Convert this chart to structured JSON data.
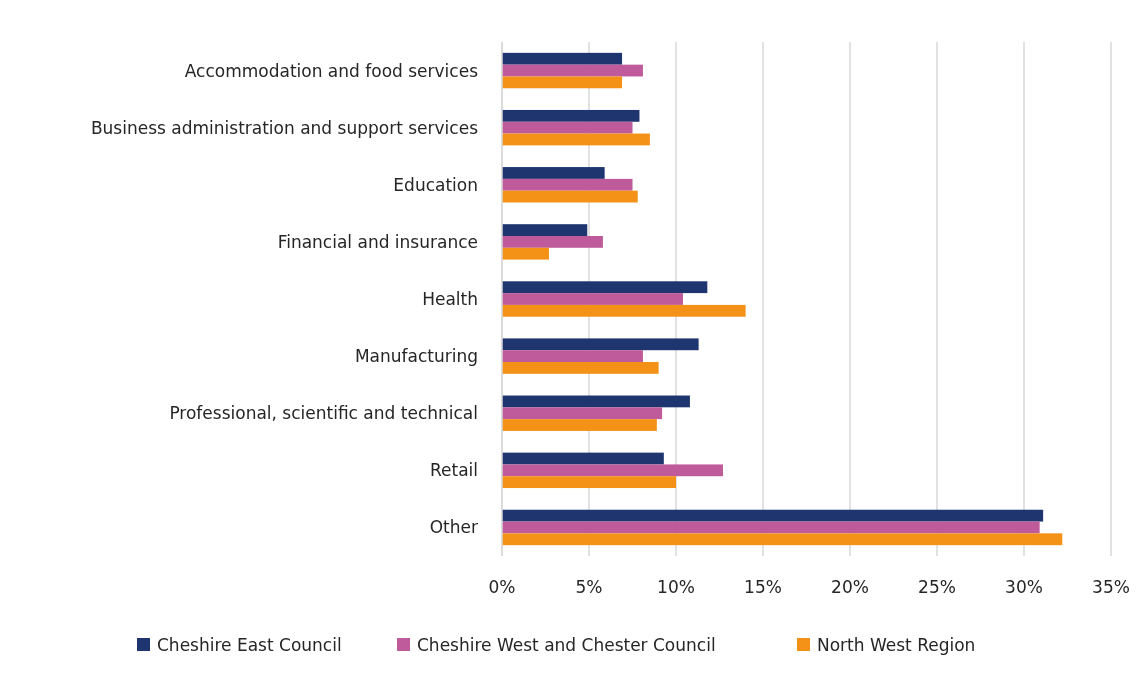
{
  "chart_data": {
    "type": "bar",
    "orientation": "horizontal",
    "categories": [
      "Accommodation and food services",
      "Business administration and support services",
      "Education",
      "Financial and insurance",
      "Health",
      "Manufacturing",
      "Professional, scientific and technical",
      "Retail",
      "Other"
    ],
    "series": [
      {
        "name": "Cheshire East Council",
        "color": "#1f3570",
        "values": [
          6.9,
          7.9,
          5.9,
          4.9,
          11.8,
          11.3,
          10.8,
          9.3,
          31.1
        ]
      },
      {
        "name": "Cheshire West and Chester Council",
        "color": "#bf5b9a",
        "values": [
          8.1,
          7.5,
          7.5,
          5.8,
          10.4,
          8.1,
          9.2,
          12.7,
          30.9
        ]
      },
      {
        "name": "North West Region",
        "color": "#f39217",
        "values": [
          6.9,
          8.5,
          7.8,
          2.7,
          14.0,
          9.0,
          8.9,
          10.0,
          32.2
        ]
      }
    ],
    "xlim": [
      0,
      35
    ],
    "xticks": [
      {
        "value": 0,
        "label": "0%"
      },
      {
        "value": 5,
        "label": "5%"
      },
      {
        "value": 10,
        "label": "10%"
      },
      {
        "value": 15,
        "label": "15%"
      },
      {
        "value": 20,
        "label": "20%"
      },
      {
        "value": 25,
        "label": "25%"
      },
      {
        "value": 30,
        "label": "30%"
      },
      {
        "value": 35,
        "label": "35%"
      }
    ],
    "grid": "x",
    "legend": "bottom"
  }
}
